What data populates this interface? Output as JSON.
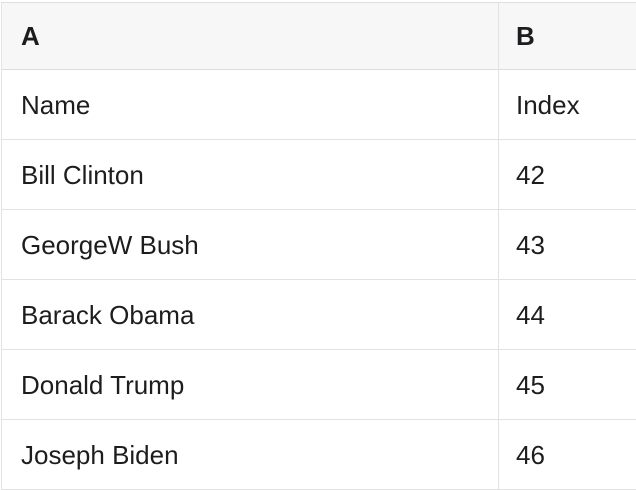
{
  "colors": {
    "header_background": "#f7f7f7",
    "row_background": "#ffffff",
    "border": "#e2e2e2",
    "text": "#1d1d1f"
  },
  "spreadsheet": {
    "column_headers": {
      "a": "A",
      "b": "B"
    },
    "rows": [
      {
        "a": "Name",
        "b": "Index"
      },
      {
        "a": "Bill Clinton",
        "b": "42"
      },
      {
        "a": "GeorgeW Bush",
        "b": "43"
      },
      {
        "a": "Barack Obama",
        "b": "44"
      },
      {
        "a": "Donald Trump",
        "b": "45"
      },
      {
        "a": "Joseph Biden",
        "b": "46"
      }
    ]
  }
}
